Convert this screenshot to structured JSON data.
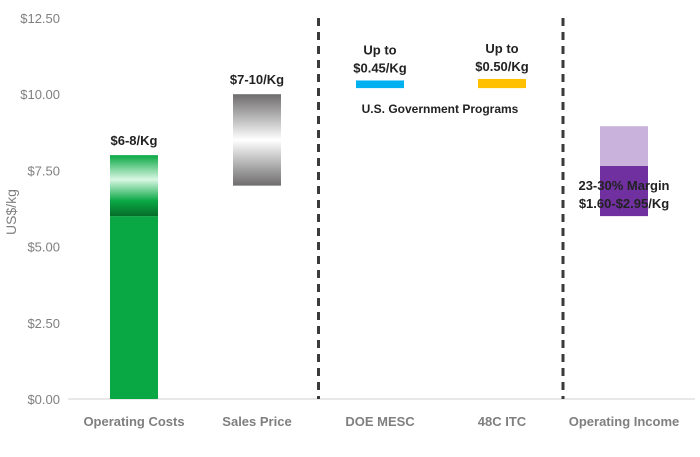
{
  "chart_data": {
    "type": "bar",
    "ylabel": "US$/kg",
    "ylim": [
      0,
      12.5
    ],
    "yticks": [
      0,
      2.5,
      5,
      7.5,
      10,
      12.5
    ],
    "ytick_labels": [
      "$0.00",
      "$2.50",
      "$5.00",
      "$7.50",
      "$10.00",
      "$12.50"
    ],
    "categories": [
      "Operating Costs",
      "Sales Price",
      "DOE MESC",
      "48C ITC",
      "Operating Income"
    ],
    "bars": [
      {
        "category": "Operating Costs",
        "low": 0,
        "high": 6,
        "color": "#0aa845"
      },
      {
        "category": "Operating Costs",
        "low": 6,
        "high": 8,
        "color": "#0aa845",
        "style": "gradient-green",
        "label": "$6-8/Kg"
      },
      {
        "category": "Sales Price",
        "low": 7,
        "high": 10,
        "color": "#7a7878",
        "style": "gradient-gray",
        "label": "$7-10/Kg"
      },
      {
        "category": "DOE MESC",
        "low": 10.2,
        "high": 10.45,
        "color": "#00b0f0",
        "label_lines": [
          "Up to",
          "$0.45/Kg"
        ]
      },
      {
        "category": "48C ITC",
        "low": 10.2,
        "high": 10.5,
        "color": "#ffc000",
        "label_lines": [
          "Up to",
          "$0.50/Kg"
        ]
      },
      {
        "category": "Operating Income",
        "low": 6,
        "high": 7.65,
        "color": "#7030a0"
      },
      {
        "category": "Operating Income",
        "low": 7.65,
        "high": 8.95,
        "color": "#c9b3dc",
        "label_lines": [
          "23-30% Margin",
          "$1.60-$2.95/Kg"
        ]
      }
    ],
    "group_note": "U.S. Government Programs",
    "dividers_after": [
      "Sales Price",
      "48C ITC"
    ],
    "grid": false,
    "legend": "none"
  }
}
